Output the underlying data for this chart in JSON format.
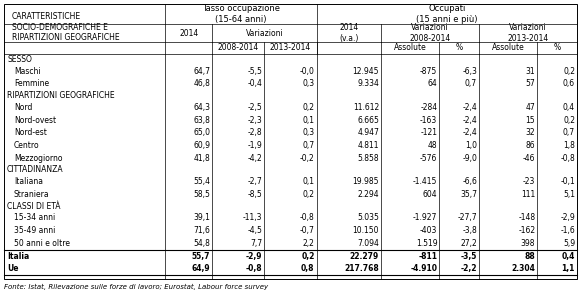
{
  "title_left": "CARATTERISTICHE\nSOCIO-DEMOGRAFICHE E\nRIPARTIZIONI GEOGRAFICHE",
  "sections": [
    {
      "label": "SESSO",
      "rows": [
        [
          "Maschi",
          "64,7",
          "-5,5",
          "-0,0",
          "12.945",
          "-875",
          "-6,3",
          "31",
          "0,2"
        ],
        [
          "Femmine",
          "46,8",
          "-0,4",
          "0,3",
          "9.334",
          "64",
          "0,7",
          "57",
          "0,6"
        ]
      ]
    },
    {
      "label": "RIPARTIZIONI GEOGRAFICHE",
      "rows": [
        [
          "Nord",
          "64,3",
          "-2,5",
          "0,2",
          "11.612",
          "-284",
          "-2,4",
          "47",
          "0,4"
        ],
        [
          "Nord-ovest",
          "63,8",
          "-2,3",
          "0,1",
          "6.665",
          "-163",
          "-2,4",
          "15",
          "0,2"
        ],
        [
          "Nord-est",
          "65,0",
          "-2,8",
          "0,3",
          "4.947",
          "-121",
          "-2,4",
          "32",
          "0,7"
        ],
        [
          "Centro",
          "60,9",
          "-1,9",
          "0,7",
          "4.811",
          "48",
          "1,0",
          "86",
          "1,8"
        ],
        [
          "Mezzogiorno",
          "41,8",
          "-4,2",
          "-0,2",
          "5.858",
          "-576",
          "-9,0",
          "-46",
          "-0,8"
        ]
      ]
    },
    {
      "label": "CITTADINANZA",
      "rows": [
        [
          "Italiana",
          "55,4",
          "-2,7",
          "0,1",
          "19.985",
          "-1.415",
          "-6,6",
          "-23",
          "-0,1"
        ],
        [
          "Straniera",
          "58,5",
          "-8,5",
          "0,2",
          "2.294",
          "604",
          "35,7",
          "111",
          "5,1"
        ]
      ]
    },
    {
      "label": "CLASSI DI ETA",
      "rows": [
        [
          "15-34 anni",
          "39,1",
          "-11,3",
          "-0,8",
          "5.035",
          "-1.927",
          "-27,7",
          "-148",
          "-2,9"
        ],
        [
          "35-49 anni",
          "71,6",
          "-4,5",
          "-0,7",
          "10.150",
          "-403",
          "-3,8",
          "-162",
          "-1,6"
        ],
        [
          "50 anni e oltre",
          "54,8",
          "7,7",
          "2,2",
          "7.094",
          "1.519",
          "27,2",
          "398",
          "5,9"
        ]
      ]
    }
  ],
  "bold_rows": [
    [
      "Italia",
      "55,7",
      "-2,9",
      "0,2",
      "22.279",
      "-811",
      "-3,5",
      "88",
      "0,4"
    ],
    [
      "Ue",
      "64,9",
      "-0,8",
      "0,8",
      "217.768",
      "-4.910",
      "-2,2",
      "2.304",
      "1,1"
    ]
  ],
  "footer": "Fonte: Istat, Rilevazione sulle forze di lavoro; Eurostat, Labour force survey",
  "bg_color": "#ffffff",
  "fs": 5.5,
  "fs_header": 6.0,
  "fs_footer": 5.0
}
